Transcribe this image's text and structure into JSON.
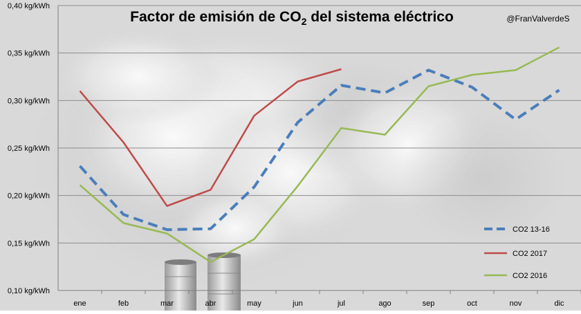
{
  "chart_data": {
    "type": "line",
    "title_main": "Factor de emisión de CO",
    "title_sub": "2",
    "title_rest": " del sistema eléctrico",
    "watermark": "@FranValverdeS",
    "categories": [
      "ene",
      "feb",
      "mar",
      "abr",
      "may",
      "jun",
      "jul",
      "ago",
      "sep",
      "oct",
      "nov",
      "dic"
    ],
    "yticks": [
      "0,10 kg/kWh",
      "0,15 kg/kWh",
      "0,20 kg/kWh",
      "0,25 kg/kWh",
      "0,30 kg/kWh",
      "0,35 kg/kWh",
      "0,40 kg/kWh"
    ],
    "ylim": [
      0.1,
      0.4
    ],
    "grid": true,
    "legend_position": "bottom-right",
    "series": [
      {
        "name": "CO2 13-16",
        "style": "dashed",
        "color": "#4A7EBB",
        "values": [
          0.231,
          0.18,
          0.164,
          0.165,
          0.209,
          0.277,
          0.316,
          0.308,
          0.332,
          0.314,
          0.28,
          0.311
        ]
      },
      {
        "name": "CO2 2017",
        "style": "solid",
        "color": "#BE4B48",
        "values": [
          0.31,
          0.256,
          0.189,
          0.206,
          0.284,
          0.32,
          0.333,
          null,
          null,
          null,
          null,
          null
        ]
      },
      {
        "name": "CO2 2016",
        "style": "solid",
        "color": "#98B954",
        "values": [
          0.211,
          0.171,
          0.16,
          0.13,
          0.154,
          0.21,
          0.271,
          0.264,
          0.315,
          0.327,
          0.332,
          0.356
        ]
      }
    ]
  }
}
